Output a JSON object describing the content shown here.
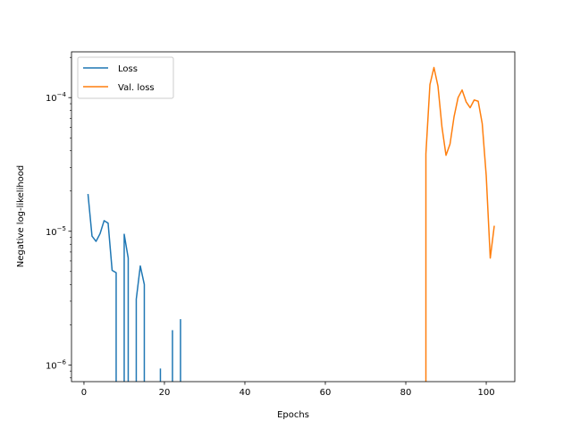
{
  "chart_data": {
    "type": "line",
    "title": "",
    "xlabel": "Epochs",
    "ylabel": "Negative log-likelihood",
    "yscale": "log",
    "xlim": [
      -3.1,
      107.1
    ],
    "ylim": [
      7.5e-07,
      0.00022
    ],
    "x_ticks": [
      0,
      20,
      40,
      60,
      80,
      100
    ],
    "x_tick_labels": [
      "0",
      "20",
      "40",
      "60",
      "80",
      "100"
    ],
    "y_ticks": [
      1e-06,
      1e-05,
      0.0001
    ],
    "y_tick_labels": [
      {
        "base": "10",
        "exp": "−6"
      },
      {
        "base": "10",
        "exp": "−5"
      },
      {
        "base": "10",
        "exp": "−4"
      }
    ],
    "grid": false,
    "legend_position": "top-left",
    "series": [
      {
        "name": "Loss",
        "color": "#1f77b4",
        "segments": [
          [
            [
              1,
              1.9e-05
            ],
            [
              2,
              9.2e-06
            ],
            [
              3,
              8.4e-06
            ],
            [
              4,
              9.6e-06
            ],
            [
              5,
              1.2e-05
            ],
            [
              6,
              1.15e-05
            ],
            [
              7,
              5.1e-06
            ],
            [
              8,
              4.9e-06
            ],
            [
              8,
              6e-07
            ]
          ],
          [
            [
              10,
              6e-07
            ],
            [
              10,
              9.5e-06
            ],
            [
              11,
              6.3e-06
            ],
            [
              11,
              6e-07
            ]
          ],
          [
            [
              13,
              6e-07
            ],
            [
              13,
              3.1e-06
            ],
            [
              14,
              5.5e-06
            ],
            [
              15,
              4e-06
            ],
            [
              15,
              6e-07
            ]
          ],
          [
            [
              19,
              6e-07
            ],
            [
              19,
              9.4e-07
            ]
          ],
          [
            [
              22,
              6e-07
            ],
            [
              22,
              1.82e-06
            ]
          ],
          [
            [
              24,
              6e-07
            ],
            [
              24,
              2.2e-06
            ]
          ]
        ]
      },
      {
        "name": "Val. loss",
        "color": "#ff7f0e",
        "segments": [
          [
            [
              85,
              6e-07
            ],
            [
              85,
              3.8e-05
            ],
            [
              86,
              0.000125
            ],
            [
              87,
              0.000168
            ],
            [
              88,
              0.000122
            ],
            [
              89,
              6e-05
            ],
            [
              90,
              3.7e-05
            ],
            [
              91,
              4.5e-05
            ],
            [
              92,
              7.2e-05
            ],
            [
              93,
              0.0001
            ],
            [
              94,
              0.000114
            ],
            [
              95,
              9.3e-05
            ],
            [
              96,
              8.4e-05
            ],
            [
              97,
              9.6e-05
            ],
            [
              98,
              9.4e-05
            ],
            [
              99,
              6.4e-05
            ],
            [
              100,
              2.6e-05
            ],
            [
              101,
              6.3e-06
            ],
            [
              102,
              1.1e-05
            ]
          ]
        ]
      }
    ]
  }
}
